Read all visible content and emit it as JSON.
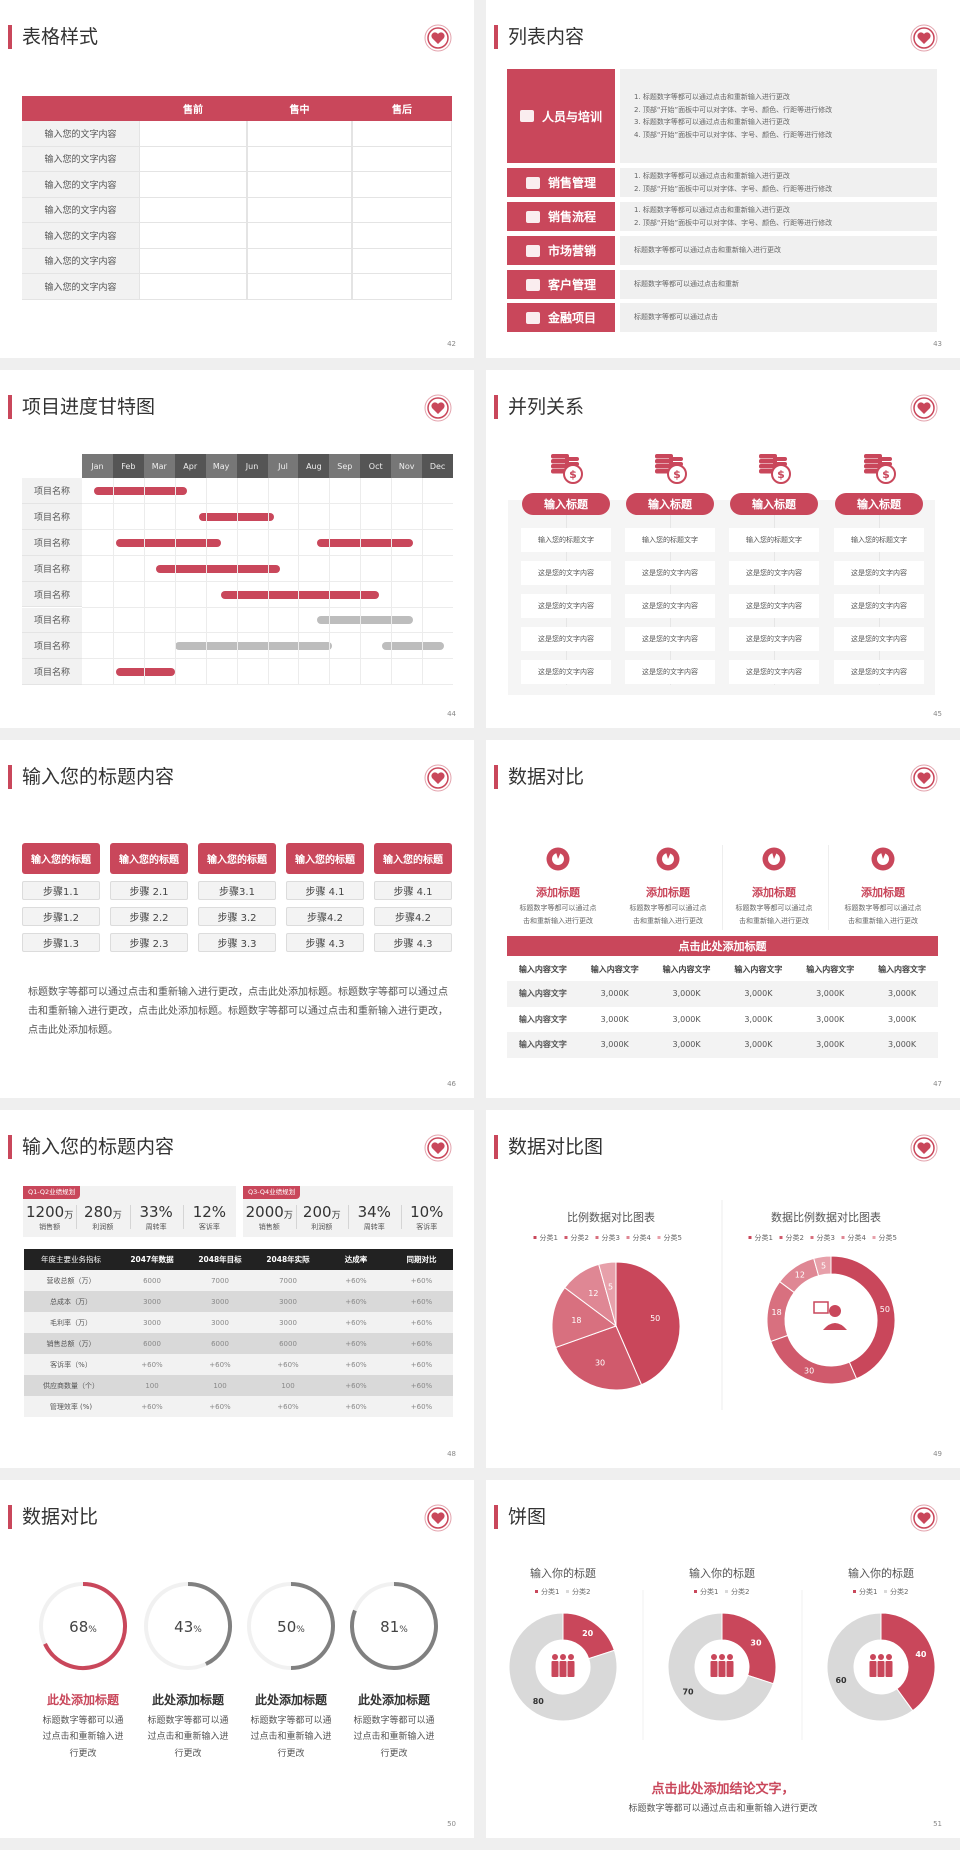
{
  "colors": {
    "accent": "#c9475b",
    "dark": "#555555",
    "mid": "#777777",
    "gray": "#bdbdbd",
    "light": "#f2f2f2",
    "ring_gray": "#808080",
    "donut_gray": "#d9d9d9",
    "pie": [
      "#c9475b",
      "#d05a6c",
      "#d8707f",
      "#df8794",
      "#e7a0aa"
    ]
  },
  "slides": {
    "s42": {
      "title": "表格样式",
      "page": "42",
      "headers": [
        "",
        "售前",
        "售中",
        "售后"
      ],
      "rows": [
        "输入您的文字内容",
        "输入您的文字内容",
        "输入您的文字内容",
        "输入您的文字内容",
        "输入您的文字内容",
        "输入您的文字内容",
        "输入您的文字内容"
      ]
    },
    "s43": {
      "title": "列表内容",
      "page": "43",
      "items": [
        {
          "label": "人员与培训",
          "icon": "training-icon",
          "lines": [
            "1.  标题数字等都可以通过点击和重新输入进行更改",
            "2.  顶部“开始”面板中可以对字体、字号、颜色、行距等进行修改",
            "3.  标题数字等都可以通过点击和重新输入进行更改",
            "4.  顶部“开始”面板中可以对字体、字号、颜色、行距等进行修改"
          ]
        },
        {
          "label": "销售管理",
          "icon": "sales-manager-icon",
          "lines": [
            "1.  标题数字等都可以通过点击和重新输入进行更改",
            "2.  顶部“开始”面板中可以对字体、字号、颜色、行距等进行修改"
          ]
        },
        {
          "label": "销售流程",
          "icon": "shield-icon",
          "lines": [
            "1.  标题数字等都可以通过点击和重新输入进行更改",
            "2.  顶部“开始”面板中可以对字体、字号、颜色、行距等进行修改"
          ]
        },
        {
          "label": "市场营销",
          "icon": "bar-chart-icon",
          "lines": [
            "标题数字等都可以通过点击和重新输入进行更改"
          ]
        },
        {
          "label": "客户管理",
          "icon": "users-icon",
          "lines": [
            "标题数字等都可以通过点击和重新"
          ]
        },
        {
          "label": "金融项目",
          "icon": "finance-icon",
          "lines": [
            "标题数字等都可以通过点击"
          ]
        }
      ]
    },
    "s44": {
      "title": "项目进度甘特图",
      "page": "44"
    },
    "s45": {
      "title": "并列关系",
      "page": "45",
      "columns": [
        {
          "title": "输入标题",
          "icon": "coins-dollar-icon",
          "cells": [
            "输入您的标题文字",
            "这是您的文字内容",
            "这是您的文字内容",
            "这是您的文字内容",
            "这是您的文字内容"
          ]
        },
        {
          "title": "输入标题",
          "icon": "coins-dollar-icon",
          "cells": [
            "输入您的标题文字",
            "这是您的文字内容",
            "这是您的文字内容",
            "这是您的文字内容",
            "这是您的文字内容"
          ]
        },
        {
          "title": "输入标题",
          "icon": "coins-dollar-icon",
          "cells": [
            "输入您的标题文字",
            "这是您的文字内容",
            "这是您的文字内容",
            "这是您的文字内容",
            "这是您的文字内容"
          ]
        },
        {
          "title": "输入标题",
          "icon": "coins-dollar-icon",
          "cells": [
            "输入您的标题文字",
            "这是您的文字内容",
            "这是您的文字内容",
            "这是您的文字内容",
            "这是您的文字内容"
          ]
        }
      ]
    },
    "s46": {
      "title": "输入您的标题内容",
      "page": "46",
      "columns": [
        {
          "title": "输入您的标题",
          "steps": [
            "步骤1.1",
            "步骤1.2",
            "步骤1.3"
          ]
        },
        {
          "title": "输入您的标题",
          "steps": [
            "步骤 2.1",
            "步骤 2.2",
            "步骤 2.3"
          ]
        },
        {
          "title": "输入您的标题",
          "steps": [
            "步骤3.1",
            "步骤 3.2",
            "步骤 3.3"
          ]
        },
        {
          "title": "输入您的标题",
          "steps": [
            "步骤 4.1",
            "步骤4.2",
            "步骤 4.3"
          ]
        },
        {
          "title": "输入您的标题",
          "steps": [
            "步骤 4.1",
            "步骤4.2",
            "步骤 4.3"
          ]
        }
      ],
      "paragraph": "标题数字等都可以通过点击和重新输入进行更改，点击此处添加标题。标题数字等都可以通过点击和重新输入进行更改，点击此处添加标题。标题数字等都可以通过点击和重新输入进行更改，点击此处添加标题。"
    },
    "s47": {
      "title": "数据对比",
      "page": "47",
      "cards": [
        {
          "title": "添加标题",
          "icon": "pie-chart-icon",
          "lines": [
            "标题数字等都可以通过点",
            "击和重新输入进行更改"
          ]
        },
        {
          "title": "添加标题",
          "icon": "pie-chart-icon",
          "lines": [
            "标题数字等都可以通过点",
            "击和重新输入进行更改"
          ]
        },
        {
          "title": "添加标题",
          "icon": "pie-chart-icon",
          "lines": [
            "标题数字等都可以通过点",
            "击和重新输入进行更改"
          ]
        },
        {
          "title": "添加标题",
          "icon": "pie-chart-icon",
          "lines": [
            "标题数字等都可以通过点",
            "击和重新输入进行更改"
          ]
        }
      ],
      "banner": "点击此处添加标题",
      "headers": [
        "输入内容文字",
        "输入内容文字",
        "输入内容文字",
        "输入内容文字",
        "输入内容文字",
        "输入内容文字"
      ],
      "rows": [
        [
          "输入内容文字",
          "3,000K",
          "3,000K",
          "3,000K",
          "3,000K",
          "3,000K"
        ],
        [
          "输入内容文字",
          "3,000K",
          "3,000K",
          "3,000K",
          "3,000K",
          "3,000K"
        ],
        [
          "输入内容文字",
          "3,000K",
          "3,000K",
          "3,000K",
          "3,000K",
          "3,000K"
        ]
      ]
    },
    "s48": {
      "title": "输入您的标题内容",
      "page": "48",
      "panels": [
        {
          "tag": "Q1-Q2业绩规划",
          "kpis": [
            {
              "value": "1200",
              "unit": "万",
              "label": "销售额"
            },
            {
              "value": "280",
              "unit": "万",
              "label": "利润额"
            },
            {
              "value": "33%",
              "unit": "",
              "label": "周转率"
            },
            {
              "value": "12%",
              "unit": "",
              "label": "客诉率"
            }
          ]
        },
        {
          "tag": "Q3-Q4业绩规划",
          "kpis": [
            {
              "value": "2000",
              "unit": "万",
              "label": "销售额"
            },
            {
              "value": "200",
              "unit": "万",
              "label": "利润额"
            },
            {
              "value": "34%",
              "unit": "",
              "label": "周转率"
            },
            {
              "value": "10%",
              "unit": "",
              "label": "客诉率"
            }
          ]
        }
      ],
      "headers": [
        "年度主要业务指标",
        "2047年数据",
        "2048年目标",
        "2048年实际",
        "达成率",
        "同期对比"
      ],
      "rows": [
        [
          "营收总额（万）",
          "6000",
          "7000",
          "7000",
          "+60%",
          "+60%"
        ],
        [
          "总成本（万）",
          "3000",
          "3000",
          "3000",
          "+60%",
          "+60%"
        ],
        [
          "毛利率（万）",
          "3000",
          "3000",
          "3000",
          "+60%",
          "+60%"
        ],
        [
          "销售总额（万）",
          "6000",
          "6000",
          "6000",
          "+60%",
          "+60%"
        ],
        [
          "客诉率（%）",
          "+60%",
          "+60%",
          "+60%",
          "+60%",
          "+60%"
        ],
        [
          "供应商数量（个）",
          "100",
          "100",
          "100",
          "+60%",
          "+60%"
        ],
        [
          "管理效率 (%)",
          "+60%",
          "+60%",
          "+60%",
          "+60%",
          "+60%"
        ]
      ]
    },
    "s49": {
      "title": "数据对比图",
      "page": "49"
    },
    "s50": {
      "title": "数据对比",
      "page": "50",
      "rings": [
        {
          "value": 68,
          "label": "68",
          "unit": "%",
          "title": "此处添加标题",
          "lines": [
            "标题数字等都可以通",
            "过点击和重新输入进",
            "行更改"
          ],
          "highlight": true
        },
        {
          "value": 43,
          "label": "43",
          "unit": "%",
          "title": "此处添加标题",
          "lines": [
            "标题数字等都可以通",
            "过点击和重新输入进",
            "行更改"
          ],
          "highlight": false
        },
        {
          "value": 50,
          "label": "50",
          "unit": "%",
          "title": "此处添加标题",
          "lines": [
            "标题数字等都可以通",
            "过点击和重新输入进",
            "行更改"
          ],
          "highlight": false
        },
        {
          "value": 81,
          "label": "81",
          "unit": "%",
          "title": "此处添加标题",
          "lines": [
            "标题数字等都可以通",
            "过点击和重新输入进",
            "行更改"
          ],
          "highlight": false
        }
      ]
    },
    "s51": {
      "title": "饼图",
      "page": "51",
      "conclusion": "点击此处添加结论文字，",
      "subtitle": "标题数字等都可以通过点击和重新输入进行更改"
    }
  },
  "chart_data": [
    {
      "id": "gantt",
      "type": "bar",
      "orientation": "horizontal-range",
      "x_unit": "month",
      "categories": [
        "Jan",
        "Feb",
        "Mar",
        "Apr",
        "May",
        "Jun",
        "Jul",
        "Aug",
        "Sep",
        "Oct",
        "Nov",
        "Dec"
      ],
      "rows": [
        {
          "label": "项目名称",
          "bars": [
            {
              "start": 0.4,
              "end": 3.4,
              "status": "active"
            }
          ]
        },
        {
          "label": "项目名称",
          "bars": [
            {
              "start": 3.8,
              "end": 6.2,
              "status": "active"
            }
          ]
        },
        {
          "label": "项目名称",
          "bars": [
            {
              "start": 1.1,
              "end": 4.5,
              "status": "active"
            },
            {
              "start": 7.6,
              "end": 10.7,
              "status": "active"
            }
          ]
        },
        {
          "label": "项目名称",
          "bars": [
            {
              "start": 2.4,
              "end": 6.4,
              "status": "active"
            }
          ]
        },
        {
          "label": "项目名称",
          "bars": [
            {
              "start": 4.5,
              "end": 9.6,
              "status": "active"
            }
          ]
        },
        {
          "label": "项目名称",
          "bars": [
            {
              "start": 7.6,
              "end": 10.7,
              "status": "planned"
            }
          ]
        },
        {
          "label": "项目名称",
          "bars": [
            {
              "start": 3.0,
              "end": 8.1,
              "status": "planned"
            },
            {
              "start": 9.7,
              "end": 11.7,
              "status": "planned"
            }
          ]
        },
        {
          "label": "项目名称",
          "bars": [
            {
              "start": 1.1,
              "end": 3.0,
              "status": "active"
            }
          ]
        }
      ]
    },
    {
      "id": "pie",
      "type": "pie",
      "title": "比例数据对比图表",
      "categories": [
        "分类1",
        "分类2",
        "分类3",
        "分类4",
        "分类5"
      ],
      "values": [
        50,
        30,
        18,
        12,
        5
      ],
      "legend": "top"
    },
    {
      "id": "donut",
      "type": "pie",
      "variant": "donut",
      "title": "数据比例数据对比图表",
      "categories": [
        "分类1",
        "分类2",
        "分类3",
        "分类4",
        "分类5"
      ],
      "values": [
        50,
        30,
        18,
        12,
        5
      ],
      "legend": "top",
      "center_icon": "customer-service-icon"
    },
    {
      "id": "donut-a",
      "type": "pie",
      "variant": "donut",
      "title": "输入你的标题",
      "categories": [
        "分类1",
        "分类2"
      ],
      "values": [
        20,
        80
      ],
      "legend": "top",
      "center_icon": "team-icon"
    },
    {
      "id": "donut-b",
      "type": "pie",
      "variant": "donut",
      "title": "输入你的标题",
      "categories": [
        "分类1",
        "分类2"
      ],
      "values": [
        30,
        70
      ],
      "legend": "top",
      "center_icon": "team-icon"
    },
    {
      "id": "donut-c",
      "type": "pie",
      "variant": "donut",
      "title": "输入你的标题",
      "categories": [
        "分类1",
        "分类2"
      ],
      "values": [
        40,
        60
      ],
      "legend": "top",
      "center_icon": "team-icon"
    }
  ]
}
